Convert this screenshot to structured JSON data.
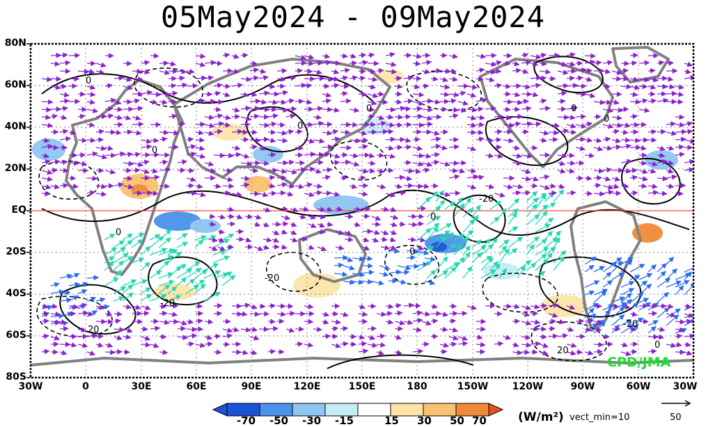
{
  "title": "05May2024 - 09May2024",
  "map": {
    "lat_labels": [
      "80N",
      "60N",
      "40N",
      "20N",
      "EQ",
      "20S",
      "40S",
      "60S",
      "80S"
    ],
    "lon_labels": [
      "30W",
      "0",
      "30E",
      "60E",
      "90E",
      "120E",
      "150E",
      "180",
      "150W",
      "120W",
      "90W",
      "60W",
      "30W"
    ],
    "lat_range": [
      -80,
      80
    ],
    "lon_range_east": [
      -30,
      330
    ],
    "equator_color": "#ff4040",
    "coast_color": "#808080",
    "grid": "dotted"
  },
  "contour_labels": [
    "0",
    "0",
    "0",
    "0",
    "0",
    "0",
    "0",
    "0",
    "0",
    "-20",
    "-20",
    "20",
    "-20",
    "20",
    "-20",
    "0"
  ],
  "legend": {
    "ticks": [
      "-70",
      "-50",
      "-30",
      "-15",
      "15",
      "30",
      "50",
      "70"
    ],
    "colors": [
      "#1c52d8",
      "#4a92ea",
      "#8ec6f2",
      "#c6ecf6",
      "#ffffff",
      "#fde5aa",
      "#f8c270",
      "#f08a38",
      "#e8521a"
    ],
    "label": "(W/m²)",
    "vect_min": "vect_min=10",
    "ref_vector": "50"
  },
  "credit": "CPD/JMA",
  "colors": {
    "vector_weak": "#8a22cc",
    "vector_mid": "#2a6cf0",
    "vector_strong": "#22d8b0"
  }
}
